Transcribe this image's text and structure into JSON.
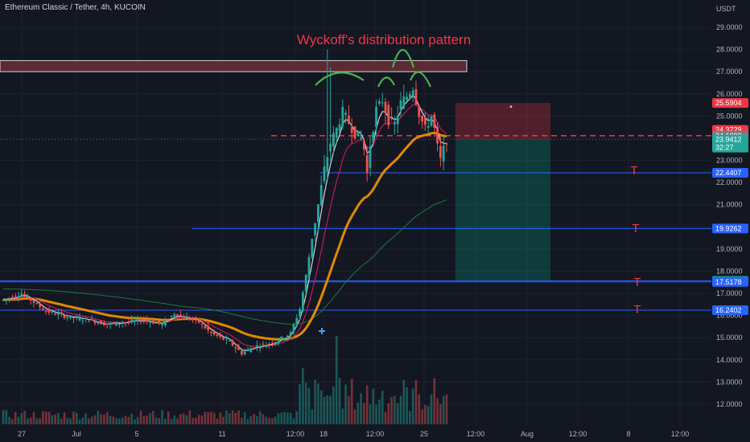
{
  "symbol_title": "Ethereum Classic / Tether, 4h, KUCOIN",
  "annotation": "Wyckoff's distribution pattern",
  "target_marker": "T",
  "colors": {
    "background": "#131722",
    "grid": "#1e222d",
    "up": "#26a69a",
    "down": "#ef5350",
    "annotation": "#f23645",
    "arc": "#4caf50",
    "hline": "#2962ff",
    "ema_fast": "#d1d4dc",
    "ema_mid": "#c2185b",
    "ema_slow": "#e08a00",
    "ema_long": "#1b7a3a"
  },
  "chart_data": {
    "type": "candlestick",
    "y_axis_unit": "USDT",
    "ylim": [
      11.5,
      29.5
    ],
    "y_ticks": [
      "29.0000",
      "28.0000",
      "27.0000",
      "26.0000",
      "25.0000",
      "24.0000",
      "23.0000",
      "22.0000",
      "21.0000",
      "20.0000",
      "19.0000",
      "18.0000",
      "17.0000",
      "16.0000",
      "15.0000",
      "14.0000",
      "13.0000",
      "12.0000"
    ],
    "x_ticks": [
      "27",
      "Jul",
      "5",
      "11",
      "12:00",
      "18",
      "12:00",
      "25",
      "12:00",
      "Aug",
      "12:00",
      "8",
      "12:00"
    ],
    "price_labels": [
      {
        "value": 25.5904,
        "text": "25.5904",
        "color": "#f23645"
      },
      {
        "value": 24.3729,
        "text": "24.3729",
        "color": "#f23645"
      },
      {
        "value": 24.109,
        "text": "24.1090",
        "color": "#787b86"
      },
      {
        "value": 23.9412,
        "text": "23.9412",
        "color": "#26a69a",
        "sub": "32:27"
      },
      {
        "value": 22.4407,
        "text": "22.4407",
        "color": "#2962ff"
      },
      {
        "value": 19.9262,
        "text": "19.9262",
        "color": "#2962ff"
      },
      {
        "value": 17.5705,
        "text": "17.5705",
        "color": "#089981"
      },
      {
        "value": 17.5178,
        "text": "17.5178",
        "color": "#2962ff"
      },
      {
        "value": 16.2402,
        "text": "16.2402",
        "color": "#2962ff"
      }
    ],
    "horizontal_levels": [
      22.4407,
      19.9262,
      17.5178,
      16.2402
    ],
    "entry_level": 24.109,
    "resistance_zone": [
      27.0,
      27.5
    ],
    "short_position": {
      "stop": 25.5904,
      "entry": 23.9412,
      "target": 17.5705
    },
    "close_series_keypoints": [
      [
        0,
        16.7
      ],
      [
        6,
        17.0
      ],
      [
        10,
        16.6
      ],
      [
        14,
        16.2
      ],
      [
        22,
        15.9
      ],
      [
        28,
        15.8
      ],
      [
        34,
        15.6
      ],
      [
        40,
        15.7
      ],
      [
        46,
        15.8
      ],
      [
        52,
        15.6
      ],
      [
        56,
        16.1
      ],
      [
        60,
        15.9
      ],
      [
        64,
        15.7
      ],
      [
        68,
        15.2
      ],
      [
        74,
        14.8
      ],
      [
        78,
        14.3
      ],
      [
        82,
        14.6
      ],
      [
        86,
        14.7
      ],
      [
        90,
        14.9
      ],
      [
        94,
        15.2
      ],
      [
        97,
        16.3
      ],
      [
        99,
        17.8
      ],
      [
        101,
        19.5
      ],
      [
        103,
        21.0
      ],
      [
        105,
        22.6
      ],
      [
        107,
        23.8
      ],
      [
        109,
        24.4
      ],
      [
        111,
        25.2
      ],
      [
        113,
        24.7
      ],
      [
        115,
        24.2
      ],
      [
        117,
        24.0
      ],
      [
        118,
        23.5
      ],
      [
        119,
        22.4
      ],
      [
        120,
        23.7
      ],
      [
        122,
        25.3
      ],
      [
        124,
        25.7
      ],
      [
        126,
        24.8
      ],
      [
        128,
        24.6
      ],
      [
        130,
        25.6
      ],
      [
        132,
        25.9
      ],
      [
        134,
        26.3
      ],
      [
        136,
        25.1
      ],
      [
        138,
        24.4
      ],
      [
        140,
        25.0
      ],
      [
        141,
        24.4
      ],
      [
        142,
        23.6
      ],
      [
        143,
        23.0
      ],
      [
        144,
        23.5
      ],
      [
        145,
        23.94
      ]
    ]
  }
}
